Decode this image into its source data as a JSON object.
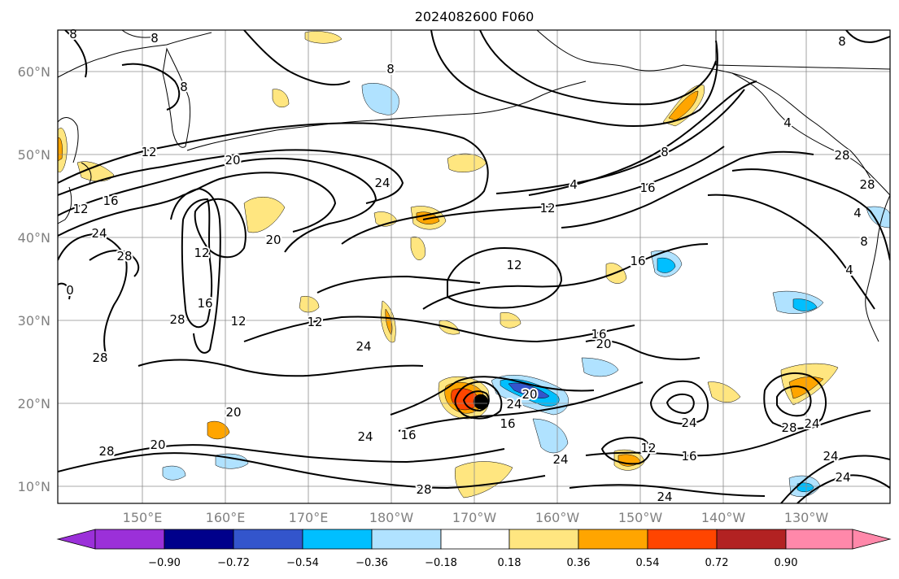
{
  "title": "2024082600 F060",
  "map": {
    "lat_labels": [
      "10°N",
      "20°N",
      "30°N",
      "40°N",
      "50°N",
      "60°N"
    ],
    "lon_labels": [
      "150°E",
      "160°E",
      "170°E",
      "180°W",
      "170°W",
      "160°W",
      "150°W",
      "140°W",
      "130°W"
    ]
  },
  "colorbar": {
    "tick_labels": [
      "−0.90",
      "−0.72",
      "−0.54",
      "−0.36",
      "−0.18",
      "0.18",
      "0.36",
      "0.54",
      "0.72",
      "0.90"
    ],
    "colors": [
      "#9b30d9",
      "#00008b",
      "#3355cc",
      "#00bfff",
      "#b0e2ff",
      "#ffffff",
      "#ffe680",
      "#ffa500",
      "#ff4500",
      "#b22222",
      "#ff88aa"
    ]
  },
  "contour_labels": [
    "8",
    "8",
    "8",
    "8",
    "8",
    "8",
    "8",
    "12",
    "12",
    "12",
    "12",
    "12",
    "12",
    "12",
    "16",
    "16",
    "16",
    "16",
    "16",
    "16",
    "16",
    "16",
    "20",
    "20",
    "20",
    "20",
    "20",
    "20",
    "24",
    "24",
    "24",
    "24",
    "24",
    "24",
    "24",
    "24",
    "24",
    "24",
    "24",
    "28",
    "28",
    "28",
    "28",
    "28",
    "28",
    "28",
    "28",
    "4",
    "4",
    "4",
    "4",
    "0",
    "12"
  ]
}
